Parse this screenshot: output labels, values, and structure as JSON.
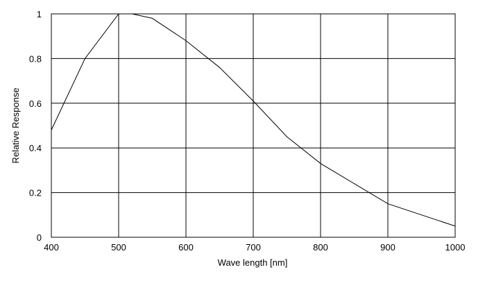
{
  "chart_data": {
    "type": "line",
    "title": "",
    "xlabel": "Wave length [nm]",
    "ylabel": "Relative Response",
    "xlim": [
      400,
      1000
    ],
    "ylim": [
      0,
      1
    ],
    "x_ticks": [
      400,
      500,
      600,
      700,
      800,
      900,
      1000
    ],
    "y_ticks": [
      0,
      0.2,
      0.4,
      0.6,
      0.8,
      1
    ],
    "x_tick_labels": [
      "400",
      "500",
      "600",
      "700",
      "800",
      "900",
      "1000"
    ],
    "y_tick_labels": [
      "0",
      "0.2",
      "0.4",
      "0.6",
      "0.8",
      "1"
    ],
    "grid": true,
    "line_color": "#000000",
    "series": [
      {
        "x": [
          400,
          450,
          500,
          520,
          550,
          600,
          650,
          700,
          750,
          800,
          850,
          900,
          950,
          1000
        ],
        "y": [
          0.48,
          0.8,
          1.0,
          1.0,
          0.98,
          0.88,
          0.76,
          0.61,
          0.45,
          0.33,
          0.24,
          0.15,
          0.1,
          0.05
        ]
      }
    ]
  }
}
